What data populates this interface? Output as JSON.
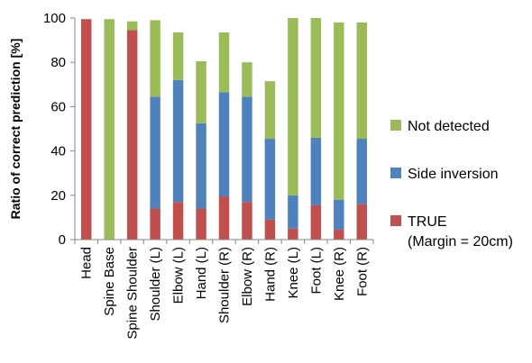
{
  "chart_data": {
    "type": "bar",
    "stacked": true,
    "categories": [
      "Head",
      "Spine Base",
      "Spine Shoulder",
      "Shoulder (L)",
      "Elbow (L)",
      "Hand (L)",
      "Shoulder (R)",
      "Elbow (R)",
      "Hand (R)",
      "Knee (L)",
      "Foot (L)",
      "Knee (R)",
      "Foot (R)"
    ],
    "series": [
      {
        "name": "TRUE\n(Margin = 20cm)",
        "label_lines": [
          "TRUE",
          "(Margin = 20cm)"
        ],
        "color": "#c0504d",
        "values": [
          99.5,
          0,
          94.5,
          14,
          17,
          14,
          19.5,
          17,
          9,
          5,
          15.5,
          4.5,
          16
        ]
      },
      {
        "name": "Side inversion",
        "color": "#4f81bd",
        "values": [
          0,
          0,
          0,
          50.5,
          55,
          38.5,
          47,
          47.5,
          36.5,
          15,
          30.5,
          13.5,
          29.5
        ]
      },
      {
        "name": "Not detected",
        "color": "#9bbb59",
        "values": [
          0,
          99.5,
          4,
          34.5,
          21.5,
          28,
          27,
          15.5,
          26,
          80,
          54,
          80,
          52.5
        ]
      }
    ],
    "xlabel": "",
    "ylabel": "Ratio of correct prediction [%]",
    "ylim": [
      0,
      100
    ],
    "yticks": [
      0,
      20,
      40,
      60,
      80,
      100
    ],
    "grid": false,
    "legend_position": "right"
  }
}
